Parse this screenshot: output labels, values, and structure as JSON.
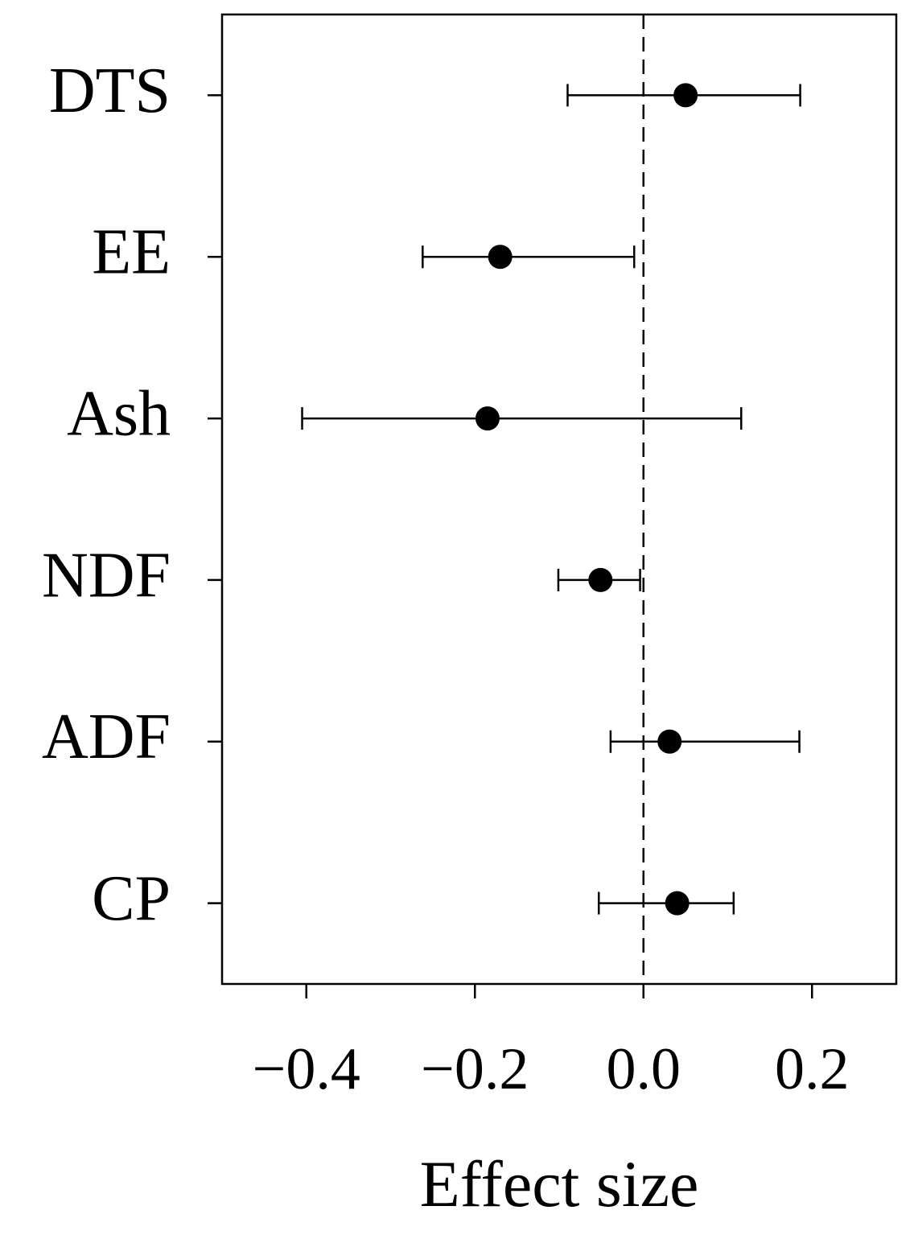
{
  "chart_data": {
    "type": "forest",
    "categories": [
      "DTS",
      "EE",
      "Ash",
      "NDF",
      "ADF",
      "CP"
    ],
    "series": [
      {
        "color": "#000000",
        "values": [
          0.05,
          -0.17,
          -0.185,
          -0.051,
          0.031,
          0.04
        ],
        "lower": [
          -0.09,
          -0.262,
          -0.405,
          -0.101,
          -0.039,
          -0.053
        ],
        "upper": [
          0.186,
          -0.011,
          0.116,
          -0.004,
          0.185,
          0.107
        ]
      }
    ],
    "xlim": [
      -0.5,
      0.3
    ],
    "xticks": [
      {
        "value": -0.4,
        "label": "−0.4"
      },
      {
        "value": -0.2,
        "label": "−0.2"
      },
      {
        "value": 0.0,
        "label": "0.0"
      },
      0.2
    ],
    "reference_line": 0,
    "xlabel": "Effect size"
  }
}
